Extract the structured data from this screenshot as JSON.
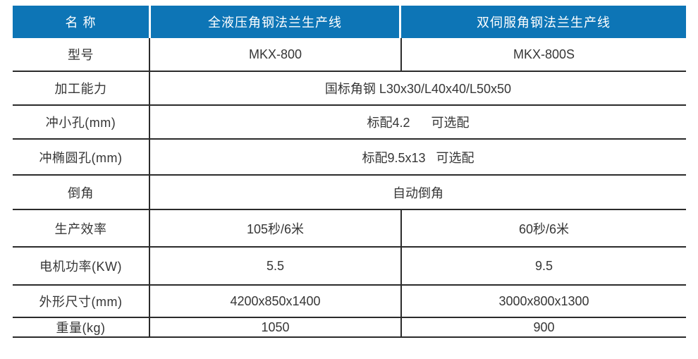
{
  "accent_color": "#0d75b6",
  "line_color": "#2b2b2b",
  "table": {
    "header": {
      "col1": "名 称",
      "col2": "全液压角钢法兰生产线",
      "col3": "双伺服角钢法兰生产线"
    },
    "rows": [
      {
        "label": "型号",
        "col2": "MKX-800",
        "col3": "MKX-800S"
      },
      {
        "label": "加工能力",
        "merged": "国标角钢 L30x30/L40x40/L50x50"
      },
      {
        "label": "冲小孔(mm)",
        "merged": "标配4.2      可选配"
      },
      {
        "label": "冲椭圆孔(mm)",
        "merged": "标配9.5x13   可选配"
      },
      {
        "label": "倒角",
        "merged": "自动倒角"
      },
      {
        "label": "生产效率",
        "col2": "105秒/6米",
        "col3": "60秒/6米"
      },
      {
        "label": "电机功率(KW)",
        "col2": "5.5",
        "col3": "9.5"
      },
      {
        "label": "外形尺寸(mm)",
        "col2": "4200x850x1400",
        "col3": "3000x800x1300"
      },
      {
        "label": "重量(kg)",
        "col2": "1050",
        "col3": "900"
      }
    ]
  }
}
